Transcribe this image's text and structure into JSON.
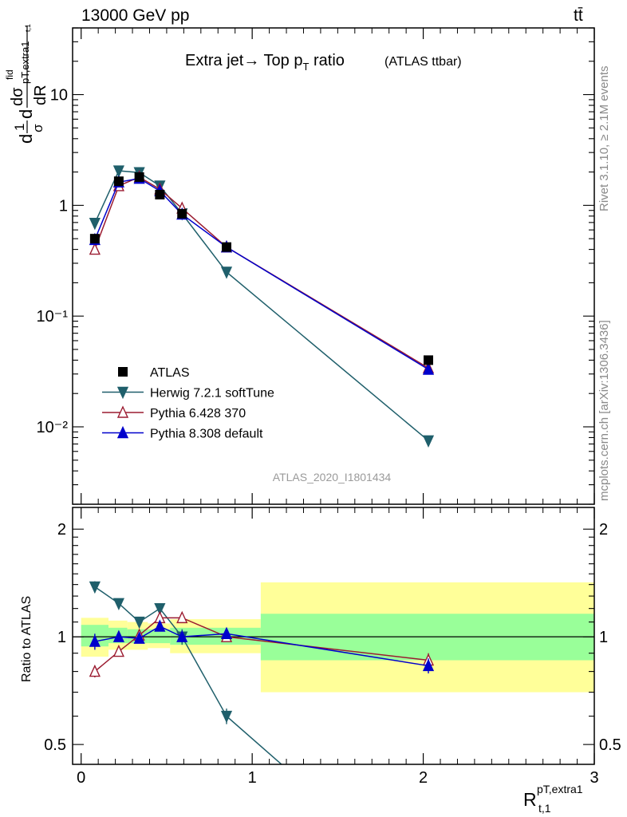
{
  "header": {
    "left": "13000 GeV pp",
    "right": "tt̄"
  },
  "title": {
    "main": "Extra jet→ Top p",
    "sub": "T",
    "tail": " ratio",
    "small": "(ATLAS ttbar)"
  },
  "side": {
    "rivet": "Rivet 3.1.10, ≥ 2.1M events",
    "mcplots": "mcplots.cern.ch [arXiv:1306.3436]"
  },
  "watermark": "ATLAS_2020_I1801434",
  "ylabel_top": {
    "d1": "d",
    "frac1_num": "1",
    "frac1_den": "σ",
    "d2": "d",
    "frac2_num": "dσ",
    "fid": "fid",
    "sub": "pT,extra1",
    "sub2": "t,1",
    "frac2_den": "dR"
  },
  "ylabel_bottom": "Ratio to ATLAS",
  "xlabel": {
    "main": "R",
    "sup": "pT,extra1",
    "sub": "t,1"
  },
  "legend": [
    {
      "label": "ATLAS",
      "color": "#000000",
      "marker": "square"
    },
    {
      "label": "Herwig 7.2.1 softTune",
      "color": "#1f5f6b",
      "marker": "triangle-down"
    },
    {
      "label": "Pythia 6.428 370",
      "color": "#9b1b30",
      "marker": "triangle-up-open"
    },
    {
      "label": "Pythia 8.308 default",
      "color": "#0000cc",
      "marker": "triangle-up"
    }
  ],
  "chart_data": [
    {
      "type": "line",
      "panel": "main",
      "xlim": [
        -0.05,
        3.0
      ],
      "ylim": [
        0.002,
        40
      ],
      "yscale": "log",
      "x_ticks": [
        0,
        1,
        2,
        3
      ],
      "x_tick_labels": [
        "0",
        "1",
        "2",
        "3"
      ],
      "y_ticks": [
        0.01,
        0.1,
        1,
        10
      ],
      "y_tick_labels": [
        "10⁻²",
        "10⁻¹",
        "1",
        "10"
      ],
      "series": [
        {
          "name": "ATLAS",
          "x": [
            0.08,
            0.22,
            0.34,
            0.46,
            0.59,
            0.85,
            2.03
          ],
          "y": [
            0.5,
            1.65,
            1.8,
            1.25,
            0.84,
            0.42,
            0.04
          ]
        },
        {
          "name": "Herwig 7.2.1 softTune",
          "x": [
            0.08,
            0.22,
            0.34,
            0.46,
            0.59,
            0.85,
            2.03
          ],
          "y": [
            0.69,
            2.05,
            1.98,
            1.5,
            0.84,
            0.25,
            0.0075
          ]
        },
        {
          "name": "Pythia 6.428 370",
          "x": [
            0.08,
            0.22,
            0.34,
            0.46,
            0.59,
            0.85,
            2.03
          ],
          "y": [
            0.4,
            1.5,
            1.8,
            1.4,
            0.94,
            0.42,
            0.034
          ]
        },
        {
          "name": "Pythia 8.308 default",
          "x": [
            0.08,
            0.22,
            0.34,
            0.46,
            0.59,
            0.85,
            2.03
          ],
          "y": [
            0.49,
            1.62,
            1.75,
            1.35,
            0.83,
            0.42,
            0.033
          ]
        }
      ]
    },
    {
      "type": "line",
      "panel": "ratio",
      "xlim": [
        -0.05,
        3.0
      ],
      "ylim": [
        0.44,
        2.3
      ],
      "yscale": "log",
      "y_ticks": [
        0.5,
        1,
        2
      ],
      "y_tick_labels": [
        "0.5",
        "1",
        "2"
      ],
      "bands": [
        {
          "x0": 0.0,
          "x1": 0.16,
          "inner": [
            0.94,
            1.08
          ],
          "outer": [
            0.88,
            1.13
          ]
        },
        {
          "x0": 0.16,
          "x1": 0.27,
          "inner": [
            0.96,
            1.06
          ],
          "outer": [
            0.92,
            1.11
          ]
        },
        {
          "x0": 0.27,
          "x1": 0.39,
          "inner": [
            0.96,
            1.05
          ],
          "outer": [
            0.92,
            1.1
          ]
        },
        {
          "x0": 0.39,
          "x1": 0.52,
          "inner": [
            0.96,
            1.05
          ],
          "outer": [
            0.93,
            1.09
          ]
        },
        {
          "x0": 0.52,
          "x1": 1.05,
          "inner": [
            0.95,
            1.06
          ],
          "outer": [
            0.9,
            1.12
          ]
        },
        {
          "x0": 1.05,
          "x1": 3.0,
          "inner": [
            0.86,
            1.16
          ],
          "outer": [
            0.7,
            1.42
          ]
        }
      ],
      "series": [
        {
          "name": "Herwig 7.2.1 softTune",
          "x": [
            0.08,
            0.22,
            0.34,
            0.46,
            0.59,
            0.85,
            1.27
          ],
          "y": [
            1.38,
            1.24,
            1.1,
            1.2,
            1.0,
            0.6,
            0.4
          ],
          "err": [
            0.05,
            0.02,
            0.02,
            0.02,
            0.05,
            0.03,
            0
          ]
        },
        {
          "name": "Pythia 6.428 370",
          "x": [
            0.08,
            0.22,
            0.34,
            0.46,
            0.59,
            0.85,
            2.03
          ],
          "y": [
            0.8,
            0.91,
            1.01,
            1.13,
            1.13,
            1.0,
            0.86
          ],
          "err": [
            0.03,
            0.01,
            0.01,
            0.01,
            0.02,
            0.02,
            0.04
          ]
        },
        {
          "name": "Pythia 8.308 default",
          "x": [
            0.08,
            0.22,
            0.34,
            0.46,
            0.59,
            0.85,
            2.03
          ],
          "y": [
            0.97,
            1.0,
            0.99,
            1.07,
            1.0,
            1.02,
            0.83
          ],
          "err": [
            0.05,
            0.02,
            0.02,
            0.02,
            0.03,
            0.03,
            0.04
          ]
        }
      ]
    }
  ]
}
